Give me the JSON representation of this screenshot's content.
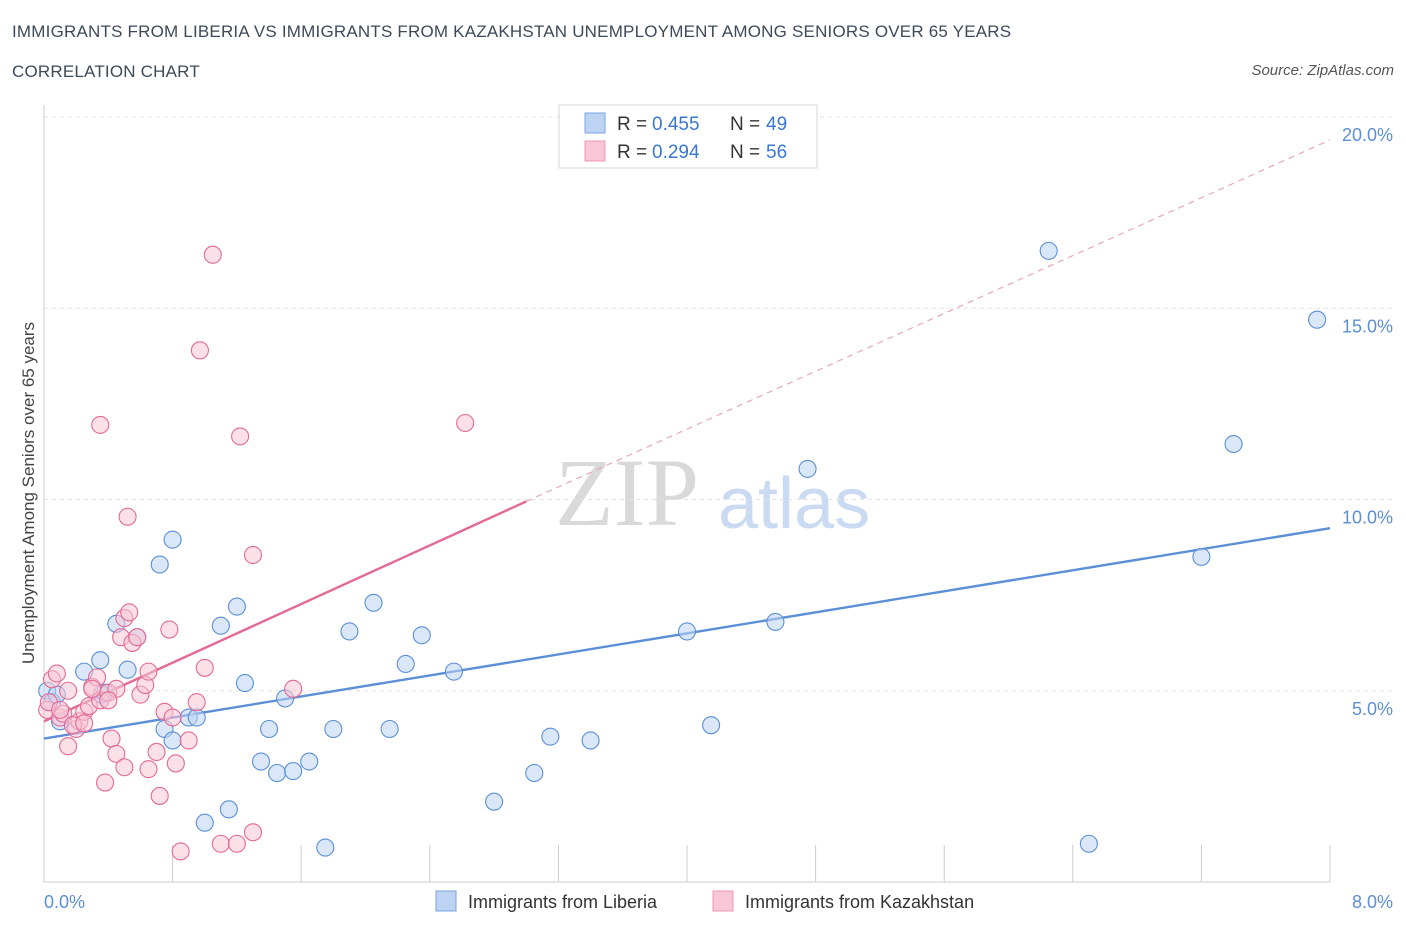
{
  "header": {
    "title": "IMMIGRANTS FROM LIBERIA VS IMMIGRANTS FROM KAZAKHSTAN UNEMPLOYMENT AMONG SENIORS OVER 65 YEARS",
    "subtitle": "CORRELATION CHART",
    "source": "Source: ZipAtlas.com"
  },
  "watermark": {
    "part1": "ZIP",
    "part2": "atlas"
  },
  "chart_data": {
    "type": "scatter",
    "title": "IMMIGRANTS FROM LIBERIA VS IMMIGRANTS FROM KAZAKHSTAN UNEMPLOYMENT AMONG SENIORS OVER 65 YEARS",
    "ylabel": "Unemployment Among Seniors over 65 years",
    "xlabel": "",
    "xlim": [
      0,
      8
    ],
    "ylim": [
      0,
      20
    ],
    "x_tick_labels": {
      "left": "0.0%",
      "right": "8.0%"
    },
    "y_ticks": [
      {
        "value": 5,
        "label": "5.0%"
      },
      {
        "value": 10,
        "label": "10.0%"
      },
      {
        "value": 15,
        "label": "15.0%"
      },
      {
        "value": 20,
        "label": "20.0%"
      }
    ],
    "legend": [
      {
        "r_label": "R = ",
        "r_value": "0.455",
        "n_label": "N = ",
        "n_value": "49"
      },
      {
        "r_label": "R = ",
        "r_value": "0.294",
        "n_label": "N = ",
        "n_value": "56"
      }
    ],
    "series": [
      {
        "name": "Immigrants from Liberia",
        "color": "#5b8fd6",
        "fill": "#bcd3f3",
        "trend": {
          "x0": 0.0,
          "y0": 3.75,
          "x1": 8.0,
          "y1": 9.25
        },
        "points": [
          [
            0.02,
            5.0
          ],
          [
            0.05,
            4.7
          ],
          [
            0.08,
            4.9
          ],
          [
            0.1,
            4.2
          ],
          [
            0.36,
            4.9
          ],
          [
            0.25,
            5.5
          ],
          [
            0.35,
            5.8
          ],
          [
            0.45,
            6.75
          ],
          [
            0.52,
            5.55
          ],
          [
            0.58,
            6.4
          ],
          [
            0.72,
            8.3
          ],
          [
            0.8,
            8.95
          ],
          [
            0.75,
            4.0
          ],
          [
            0.38,
            4.95
          ],
          [
            0.8,
            3.7
          ],
          [
            0.9,
            4.3
          ],
          [
            0.95,
            4.3
          ],
          [
            1.1,
            6.7
          ],
          [
            1.2,
            7.2
          ],
          [
            1.25,
            5.2
          ],
          [
            1.35,
            3.15
          ],
          [
            1.45,
            2.85
          ],
          [
            1.5,
            4.8
          ],
          [
            1.55,
            2.9
          ],
          [
            1.65,
            3.15
          ],
          [
            1.75,
            0.9
          ],
          [
            1.8,
            4.0
          ],
          [
            1.9,
            6.55
          ],
          [
            2.05,
            7.3
          ],
          [
            2.15,
            4.0
          ],
          [
            2.25,
            5.7
          ],
          [
            2.35,
            6.45
          ],
          [
            2.55,
            5.5
          ],
          [
            2.8,
            2.1
          ],
          [
            3.05,
            2.85
          ],
          [
            3.15,
            3.8
          ],
          [
            3.4,
            3.7
          ],
          [
            4.0,
            6.55
          ],
          [
            4.15,
            4.1
          ],
          [
            4.55,
            6.8
          ],
          [
            4.75,
            10.8
          ],
          [
            6.25,
            16.5
          ],
          [
            6.5,
            1.0
          ],
          [
            7.2,
            8.5
          ],
          [
            7.4,
            11.45
          ],
          [
            7.92,
            14.7
          ],
          [
            1.0,
            1.55
          ],
          [
            1.15,
            1.9
          ],
          [
            1.4,
            4.0
          ]
        ]
      },
      {
        "name": "Immigrants from Kazakhstan",
        "color": "#e36a95",
        "fill": "#f8c6d6",
        "trend": {
          "x0": 0.0,
          "y0": 4.2,
          "x1": 3.0,
          "y1": 9.95
        },
        "trend_ext": {
          "x0": 3.0,
          "y0": 9.95,
          "x1": 8.0,
          "y1": 19.4
        },
        "points": [
          [
            0.02,
            4.5
          ],
          [
            0.03,
            4.7
          ],
          [
            0.05,
            5.3
          ],
          [
            0.08,
            5.45
          ],
          [
            0.1,
            4.3
          ],
          [
            0.12,
            4.4
          ],
          [
            0.15,
            3.55
          ],
          [
            0.2,
            4.0
          ],
          [
            0.22,
            4.2
          ],
          [
            0.25,
            4.45
          ],
          [
            0.28,
            4.6
          ],
          [
            0.3,
            5.1
          ],
          [
            0.33,
            5.35
          ],
          [
            0.35,
            4.75
          ],
          [
            0.4,
            4.95
          ],
          [
            0.45,
            5.05
          ],
          [
            0.42,
            3.75
          ],
          [
            0.45,
            3.35
          ],
          [
            0.5,
            3.0
          ],
          [
            0.38,
            2.6
          ],
          [
            0.48,
            6.4
          ],
          [
            0.5,
            6.9
          ],
          [
            0.53,
            7.05
          ],
          [
            0.55,
            6.25
          ],
          [
            0.6,
            4.9
          ],
          [
            0.63,
            5.15
          ],
          [
            0.65,
            2.95
          ],
          [
            0.7,
            3.4
          ],
          [
            0.72,
            2.25
          ],
          [
            0.75,
            4.45
          ],
          [
            0.8,
            4.3
          ],
          [
            0.82,
            3.1
          ],
          [
            0.85,
            0.8
          ],
          [
            0.9,
            3.7
          ],
          [
            0.95,
            4.7
          ],
          [
            0.65,
            5.5
          ],
          [
            1.0,
            5.6
          ],
          [
            1.1,
            1.0
          ],
          [
            1.2,
            1.0
          ],
          [
            1.3,
            1.3
          ],
          [
            1.55,
            5.05
          ],
          [
            0.35,
            11.95
          ],
          [
            0.52,
            9.55
          ],
          [
            0.97,
            13.9
          ],
          [
            1.05,
            16.4
          ],
          [
            1.22,
            11.65
          ],
          [
            1.3,
            8.55
          ],
          [
            2.62,
            12.0
          ],
          [
            0.1,
            4.5
          ],
          [
            0.18,
            4.1
          ],
          [
            0.25,
            4.15
          ],
          [
            0.3,
            5.05
          ],
          [
            0.58,
            6.4
          ],
          [
            0.78,
            6.6
          ],
          [
            0.4,
            4.75
          ],
          [
            0.15,
            5.0
          ]
        ]
      }
    ]
  }
}
